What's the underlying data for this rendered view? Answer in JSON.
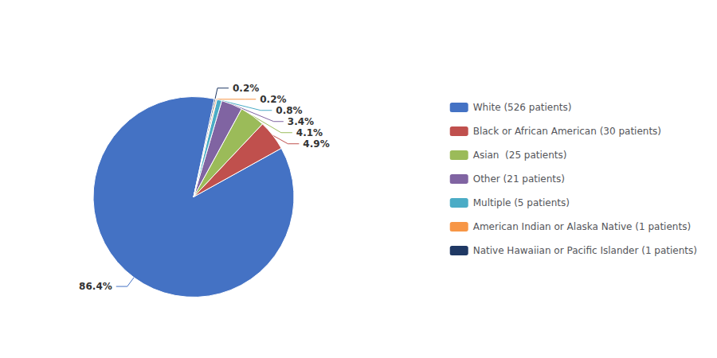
{
  "chart_data": {
    "type": "pie",
    "categories": [
      "White (526 patients)",
      "Black or African American (30 patients)",
      "Asian  (25 patients)",
      "Other (21 patients)",
      "Multiple (5 patients)",
      "American Indian or Alaska Native (1 patients)",
      "Native Hawaiian or Pacific Islander (1 patients)"
    ],
    "values": [
      86.4,
      4.9,
      4.1,
      3.4,
      0.8,
      0.2,
      0.2
    ],
    "value_labels": [
      "86.4%",
      "4.9%",
      "4.1%",
      "3.4%",
      "0.8%",
      "0.2%",
      "0.2%"
    ],
    "colors": [
      "#4472C4",
      "#C0504D",
      "#9BBB59",
      "#8064A2",
      "#4BACC6",
      "#F79646",
      "#1F3864"
    ],
    "data_labels": true,
    "legend": "right"
  }
}
